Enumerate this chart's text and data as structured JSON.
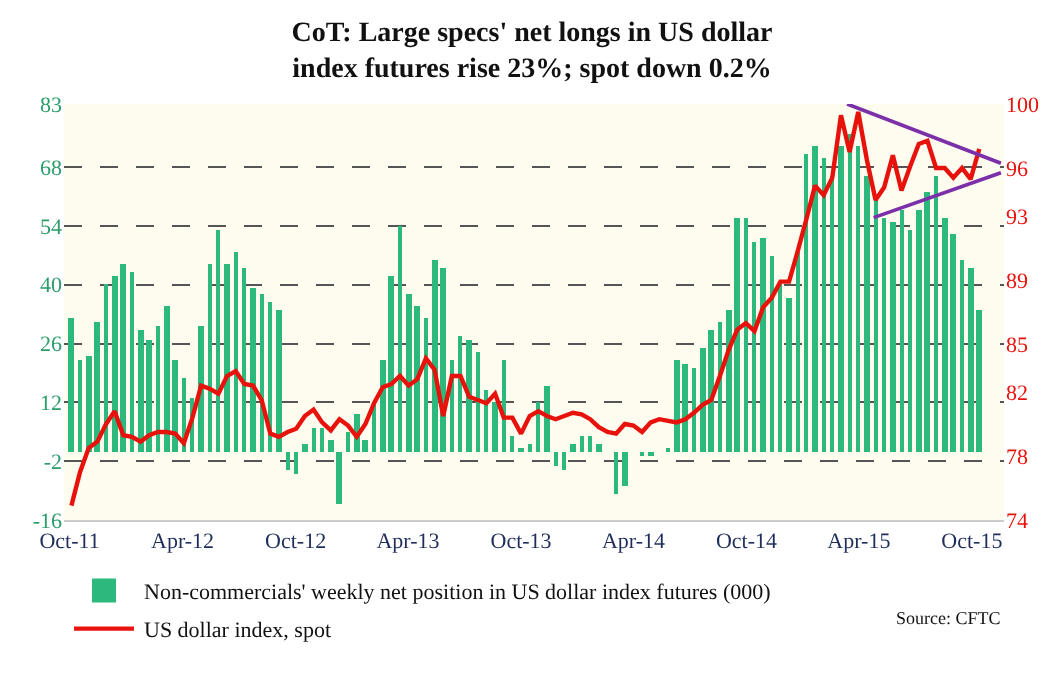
{
  "chart_data": {
    "type": "bar",
    "title": "CoT: Large specs' net longs in US dollar index futures rise 23%; spot down 0.2%",
    "x": [
      "2011-10-04",
      "2011-10-18",
      "2011-11-01",
      "2011-11-15",
      "2011-11-29",
      "2011-12-13",
      "2011-12-27",
      "2012-01-10",
      "2012-01-24",
      "2012-02-07",
      "2012-02-21",
      "2012-03-06",
      "2012-03-20",
      "2012-04-03",
      "2012-04-17",
      "2012-05-01",
      "2012-05-15",
      "2012-05-29",
      "2012-06-12",
      "2012-06-26",
      "2012-07-10",
      "2012-07-24",
      "2012-08-07",
      "2012-08-21",
      "2012-09-04",
      "2012-09-18",
      "2012-10-02",
      "2012-10-16",
      "2012-10-30",
      "2012-11-13",
      "2012-11-27",
      "2012-12-11",
      "2012-12-25",
      "2013-01-08",
      "2013-01-22",
      "2013-02-05",
      "2013-02-19",
      "2013-03-05",
      "2013-03-19",
      "2013-04-02",
      "2013-04-16",
      "2013-04-30",
      "2013-05-14",
      "2013-05-28",
      "2013-06-11",
      "2013-06-25",
      "2013-07-09",
      "2013-07-23",
      "2013-08-06",
      "2013-08-20",
      "2013-09-03",
      "2013-09-17",
      "2013-10-01",
      "2013-10-15",
      "2013-10-29",
      "2013-11-12",
      "2013-11-26",
      "2013-12-10",
      "2013-12-24",
      "2014-01-07",
      "2014-01-21",
      "2014-02-04",
      "2014-02-18",
      "2014-03-04",
      "2014-03-18",
      "2014-04-01",
      "2014-04-15",
      "2014-04-29",
      "2014-05-13",
      "2014-05-27",
      "2014-06-10",
      "2014-06-24",
      "2014-07-08",
      "2014-07-22",
      "2014-08-05",
      "2014-08-19",
      "2014-09-02",
      "2014-09-16",
      "2014-09-30",
      "2014-10-14",
      "2014-10-28",
      "2014-11-11",
      "2014-11-25",
      "2014-12-09",
      "2014-12-23",
      "2015-01-06",
      "2015-01-20",
      "2015-02-03",
      "2015-02-17",
      "2015-03-03",
      "2015-03-17",
      "2015-03-31",
      "2015-04-14",
      "2015-04-28",
      "2015-05-12",
      "2015-05-26",
      "2015-06-09",
      "2015-06-23",
      "2015-07-07",
      "2015-07-21",
      "2015-08-04",
      "2015-08-18",
      "2015-09-01",
      "2015-09-15",
      "2015-09-29",
      "2015-10-13"
    ],
    "series": [
      {
        "name": "Non-commercials' weekly net position in US dollar index futures (000)",
        "color": "#2db87d",
        "values": [
          32,
          22,
          23,
          31,
          40,
          42,
          45,
          43,
          29,
          27,
          30,
          35,
          22,
          18,
          13,
          30,
          45,
          53,
          45,
          48,
          44,
          39,
          38,
          36,
          34,
          -4,
          -5,
          2,
          6,
          6,
          3,
          -12,
          5,
          9,
          3,
          12,
          22,
          42,
          54,
          38,
          35,
          32,
          46,
          44,
          22,
          28,
          27,
          24,
          15,
          12,
          22,
          4,
          1,
          2,
          12,
          16,
          -3,
          -4,
          2,
          4,
          4,
          2,
          0,
          -10,
          -8,
          0,
          -0.5,
          -1,
          0,
          1,
          22,
          21,
          20,
          25,
          29,
          31,
          34,
          56,
          56,
          50,
          51,
          47,
          40,
          37,
          48,
          71,
          73,
          70,
          66,
          73,
          76,
          73,
          66,
          60,
          56,
          55,
          58,
          53,
          58,
          62,
          66,
          56,
          52,
          46,
          44,
          34
        ]
      },
      {
        "type": "line",
        "axis": "y2",
        "name": "US dollar index, spot",
        "color": "#e8120c",
        "values": [
          74.9,
          77.0,
          78.5,
          78.9,
          80.0,
          80.8,
          79.3,
          79.2,
          78.9,
          79.3,
          79.5,
          79.5,
          79.4,
          78.8,
          80.4,
          82.4,
          82.2,
          81.9,
          83.0,
          83.3,
          82.5,
          82.4,
          81.5,
          79.4,
          79.2,
          79.5,
          79.7,
          80.5,
          80.9,
          80.1,
          79.6,
          80.3,
          79.9,
          79.2,
          80.0,
          81.3,
          82.3,
          82.5,
          83.0,
          82.4,
          82.8,
          84.1,
          83.4,
          80.5,
          83.0,
          83.0,
          81.7,
          81.5,
          81.3,
          81.9,
          80.4,
          80.4,
          79.4,
          80.5,
          80.8,
          80.5,
          80.3,
          80.5,
          80.7,
          80.6,
          80.3,
          79.8,
          79.5,
          79.4,
          80.0,
          79.9,
          79.5,
          80.1,
          80.3,
          80.2,
          80.1,
          80.3,
          80.7,
          81.2,
          81.5,
          83.0,
          84.6,
          85.9,
          86.3,
          85.8,
          87.3,
          87.9,
          88.9,
          88.9,
          90.8,
          92.8,
          94.9,
          94.3,
          95.4,
          99.3,
          97.0,
          99.5,
          96.5,
          94.0,
          94.8,
          96.8,
          94.6,
          96.1,
          97.5,
          97.7,
          96.0,
          96.0,
          95.4,
          96.0,
          95.3,
          97.2
        ]
      },
      {
        "type": "line",
        "axis": "y2",
        "color": "#7b2fa8",
        "x": [
          "2015-03-13",
          "2015-11-17"
        ],
        "values": [
          100,
          96.3
        ]
      },
      {
        "type": "line",
        "axis": "y2",
        "color": "#7b2fa8",
        "x": [
          "2015-04-25",
          "2015-11-17"
        ],
        "values": [
          92.9,
          95.7
        ]
      }
    ],
    "xlim": [
      "2011-09-22",
      "2015-11-22"
    ],
    "xticks": [
      {
        "value": "2011-10-01",
        "label": "Oct-11"
      },
      {
        "value": "2012-04-01",
        "label": "Apr-12"
      },
      {
        "value": "2012-10-01",
        "label": "Oct-12"
      },
      {
        "value": "2013-04-01",
        "label": "Apr-13"
      },
      {
        "value": "2013-10-01",
        "label": "Oct-13"
      },
      {
        "value": "2014-04-01",
        "label": "Apr-14"
      },
      {
        "value": "2014-10-01",
        "label": "Oct-14"
      },
      {
        "value": "2015-04-01",
        "label": "Apr-15"
      },
      {
        "value": "2015-10-01",
        "label": "Oct-15"
      }
    ],
    "ylim": [
      -16,
      83
    ],
    "yticks": [
      -16,
      -2,
      12,
      26,
      40,
      54,
      68,
      83
    ],
    "y2lim": [
      74,
      100
    ],
    "y2ticks": [
      74,
      78,
      82,
      85,
      89,
      93,
      96,
      100
    ],
    "grid": "y",
    "legend": "bottom left",
    "line_style": "solid",
    "annotations": [
      "Source: CFTC"
    ]
  }
}
